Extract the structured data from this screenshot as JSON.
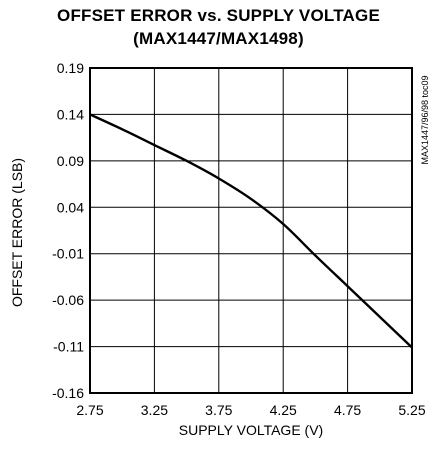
{
  "title_line1": "OFFSET ERROR vs. SUPPLY VOLTAGE",
  "title_line2": "(MAX1447/MAX1498)",
  "side_code": "MAX1447/96/98 toc09",
  "chart_data": {
    "type": "line",
    "xlabel": "SUPPLY VOLTAGE (V)",
    "ylabel": "OFFSET ERROR (LSB)",
    "xlim": [
      2.75,
      5.25
    ],
    "ylim": [
      -0.16,
      0.19
    ],
    "xticks": [
      "2.75",
      "3.25",
      "3.75",
      "4.25",
      "4.75",
      "5.25"
    ],
    "yticks": [
      "0.19",
      "0.14",
      "0.09",
      "0.04",
      "-0.01",
      "-0.06",
      "-0.11",
      "-0.16"
    ],
    "grid": true,
    "series": [
      {
        "x": [
          2.75,
          3.0,
          3.25,
          3.5,
          3.75,
          4.0,
          4.25,
          4.5,
          4.75,
          5.0,
          5.25
        ],
        "y": [
          0.14,
          0.124,
          0.107,
          0.09,
          0.071,
          0.049,
          0.022,
          -0.012,
          -0.045,
          -0.078,
          -0.111
        ]
      }
    ]
  }
}
